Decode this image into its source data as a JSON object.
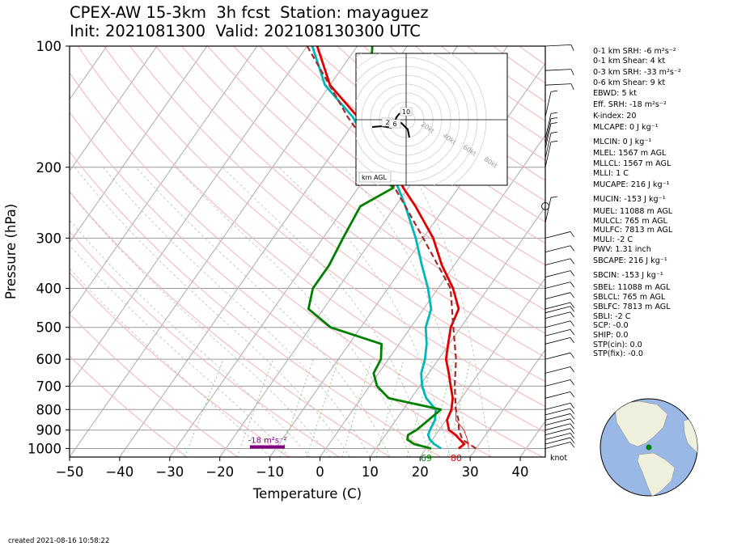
{
  "header": {
    "title_line1": "CPEX-AW 15-3km  3h fcst  Station: mayaguez",
    "title_line2": "Init: 2021081300  Valid: 202108130300 UTC"
  },
  "chart_data": {
    "type": "line",
    "subtype": "skew-T log-p",
    "xlabel": "Temperature (C)",
    "ylabel": "Pressure (hPa)",
    "xlim": [
      -50,
      45
    ],
    "ylim": [
      1050,
      100
    ],
    "x_ticks": [
      "−50",
      "−40",
      "−30",
      "−20",
      "−10",
      "0",
      "10",
      "20",
      "30",
      "40"
    ],
    "y_ticks": [
      "100",
      "200",
      "300",
      "400",
      "500",
      "600",
      "700",
      "800",
      "900",
      "1000"
    ],
    "y_scale": "log",
    "grid": true,
    "series": [
      {
        "color": "#e00000",
        "points": [
          [
            1000,
            26.5
          ],
          [
            975,
            27
          ],
          [
            950,
            25.5
          ],
          [
            925,
            24
          ],
          [
            900,
            22
          ],
          [
            850,
            20.2
          ],
          [
            800,
            19.6
          ],
          [
            750,
            18.3
          ],
          [
            700,
            16.2
          ],
          [
            650,
            14
          ],
          [
            600,
            11.5
          ],
          [
            550,
            9.8
          ],
          [
            500,
            8
          ],
          [
            450,
            7
          ],
          [
            400,
            3
          ],
          [
            350,
            -2.5
          ],
          [
            300,
            -8
          ],
          [
            250,
            -16
          ],
          [
            225,
            -21
          ],
          [
            200,
            -26
          ],
          [
            175,
            -33
          ],
          [
            150,
            -40
          ],
          [
            125,
            -50
          ],
          [
            100,
            -58
          ]
        ]
      },
      {
        "color": "#00b8b8",
        "points": [
          [
            1000,
            23
          ],
          [
            975,
            21
          ],
          [
            950,
            19.5
          ],
          [
            925,
            18.5
          ],
          [
            900,
            18.2
          ],
          [
            850,
            17.8
          ],
          [
            800,
            16.5
          ],
          [
            750,
            13
          ],
          [
            700,
            10.5
          ],
          [
            650,
            8.5
          ],
          [
            600,
            7.3
          ],
          [
            550,
            5.5
          ],
          [
            500,
            3
          ],
          [
            450,
            1.5
          ],
          [
            400,
            -2
          ],
          [
            350,
            -6.5
          ],
          [
            300,
            -11.5
          ],
          [
            250,
            -18
          ],
          [
            225,
            -22
          ],
          [
            200,
            -27
          ],
          [
            175,
            -34
          ],
          [
            150,
            -41
          ],
          [
            125,
            -51
          ],
          [
            100,
            -59
          ]
        ]
      },
      {
        "color": "#008000",
        "points": [
          [
            1000,
            21
          ],
          [
            975,
            17
          ],
          [
            950,
            15
          ],
          [
            925,
            14.5
          ],
          [
            900,
            15.5
          ],
          [
            850,
            16.5
          ],
          [
            800,
            17.5
          ],
          [
            750,
            5.5
          ],
          [
            700,
            1.5
          ],
          [
            650,
            -1
          ],
          [
            600,
            -1.5
          ],
          [
            550,
            -3.5
          ],
          [
            500,
            -16
          ],
          [
            450,
            -23
          ],
          [
            400,
            -25
          ],
          [
            350,
            -25
          ],
          [
            300,
            -26
          ],
          [
            250,
            -27
          ],
          [
            225,
            -23
          ],
          [
            200,
            -30
          ],
          [
            175,
            -34
          ],
          [
            150,
            -37
          ],
          [
            125,
            -42
          ],
          [
            100,
            -47
          ]
        ]
      },
      {
        "color": "#a52a2a",
        "dashed": true,
        "points": [
          [
            1000,
            30
          ],
          [
            950,
            26
          ],
          [
            900,
            24
          ],
          [
            850,
            22.5
          ],
          [
            800,
            20.5
          ],
          [
            700,
            17
          ],
          [
            600,
            13.5
          ],
          [
            500,
            8.5
          ],
          [
            400,
            2.5
          ],
          [
            300,
            -10
          ],
          [
            250,
            -18
          ],
          [
            200,
            -28
          ],
          [
            150,
            -42
          ],
          [
            100,
            -60
          ]
        ]
      }
    ],
    "series_labels": [
      {
        "text": "69",
        "color": "#008000"
      },
      {
        "text": "80",
        "color": "#e00000"
      }
    ],
    "srh_bar_label": "-18 m²s⁻²",
    "srh_bar": {
      "x_from": -14,
      "x_to": -7,
      "color": "#800080"
    },
    "wind_unit": "knot",
    "hodograph": {
      "label": "km AGL",
      "height_labels": [
        "10",
        "2",
        "6"
      ],
      "ring_labels": [
        "20kt",
        "40kt",
        "60kt",
        "80kt"
      ]
    }
  },
  "indices": [
    "0-1 km SRH: -6 m²s⁻²",
    "0-1 km Shear: 4 kt",
    "0-3 km SRH: -33 m²s⁻²",
    "0-6 km Shear: 9 kt",
    "EBWD: 5 kt",
    "Eff. SRH: -18 m²s⁻²",
    "K-index: 20",
    "MLCAPE: 0 J kg⁻¹",
    "MLCIN: 0 J kg⁻¹",
    "MLEL: 1567 m AGL",
    "MLLCL: 1567 m AGL",
    "MLLI: 1 C",
    "MUCAPE: 216 J kg⁻¹",
    "MUCIN: -153 J kg⁻¹",
    "MUEL: 11088 m AGL",
    "MULCL: 765 m AGL",
    "MULFC: 7813 m AGL",
    "MULI: -2 C",
    "PWV: 1.31 inch",
    "SBCAPE: 216 J kg⁻¹",
    "SBCIN: -153 J kg⁻¹",
    "SBEL: 11088 m AGL",
    "SBLCL: 765 m AGL",
    "SBLFC: 7813 m AGL",
    "SBLI: -2 C",
    "SCP: -0.0",
    "SHIP: 0.0",
    "STP(cin): 0.0",
    "STP(fix): -0.0"
  ],
  "footer": {
    "created": "created 2021-08-16 10:58:22"
  },
  "colors": {
    "ocean": "#9ab8e6",
    "land": "#efefdd",
    "station": "#008000"
  }
}
